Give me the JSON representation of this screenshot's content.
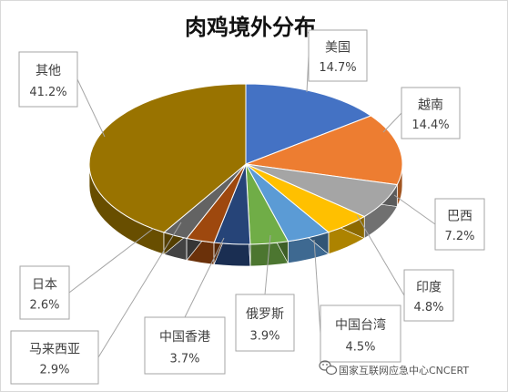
{
  "chart_data": {
    "type": "pie",
    "title": "肉鸡境外分布",
    "slices": [
      {
        "name": "美国",
        "value": 14.7,
        "label": "14.7%",
        "color": "#4472C4"
      },
      {
        "name": "越南",
        "value": 14.4,
        "label": "14.4%",
        "color": "#ED7D31"
      },
      {
        "name": "巴西",
        "value": 7.2,
        "label": "7.2%",
        "color": "#A5A5A5"
      },
      {
        "name": "印度",
        "value": 4.8,
        "label": "4.8%",
        "color": "#FFC000"
      },
      {
        "name": "中国台湾",
        "value": 4.5,
        "label": "4.5%",
        "color": "#5B9BD5"
      },
      {
        "name": "俄罗斯",
        "value": 3.9,
        "label": "3.9%",
        "color": "#70AD47"
      },
      {
        "name": "中国香港",
        "value": 3.7,
        "label": "3.7%",
        "color": "#264478"
      },
      {
        "name": "马来西亚",
        "value": 2.9,
        "label": "2.9%",
        "color": "#9E480E"
      },
      {
        "name": "日本",
        "value": 2.6,
        "label": "2.6%",
        "color": "#636363"
      },
      {
        "name": "其他",
        "value": 41.2,
        "label": "41.2%",
        "color": "#997300"
      }
    ]
  },
  "watermark": {
    "text": "国家互联网应急中心CNCERT",
    "icon": "wechat-icon"
  }
}
